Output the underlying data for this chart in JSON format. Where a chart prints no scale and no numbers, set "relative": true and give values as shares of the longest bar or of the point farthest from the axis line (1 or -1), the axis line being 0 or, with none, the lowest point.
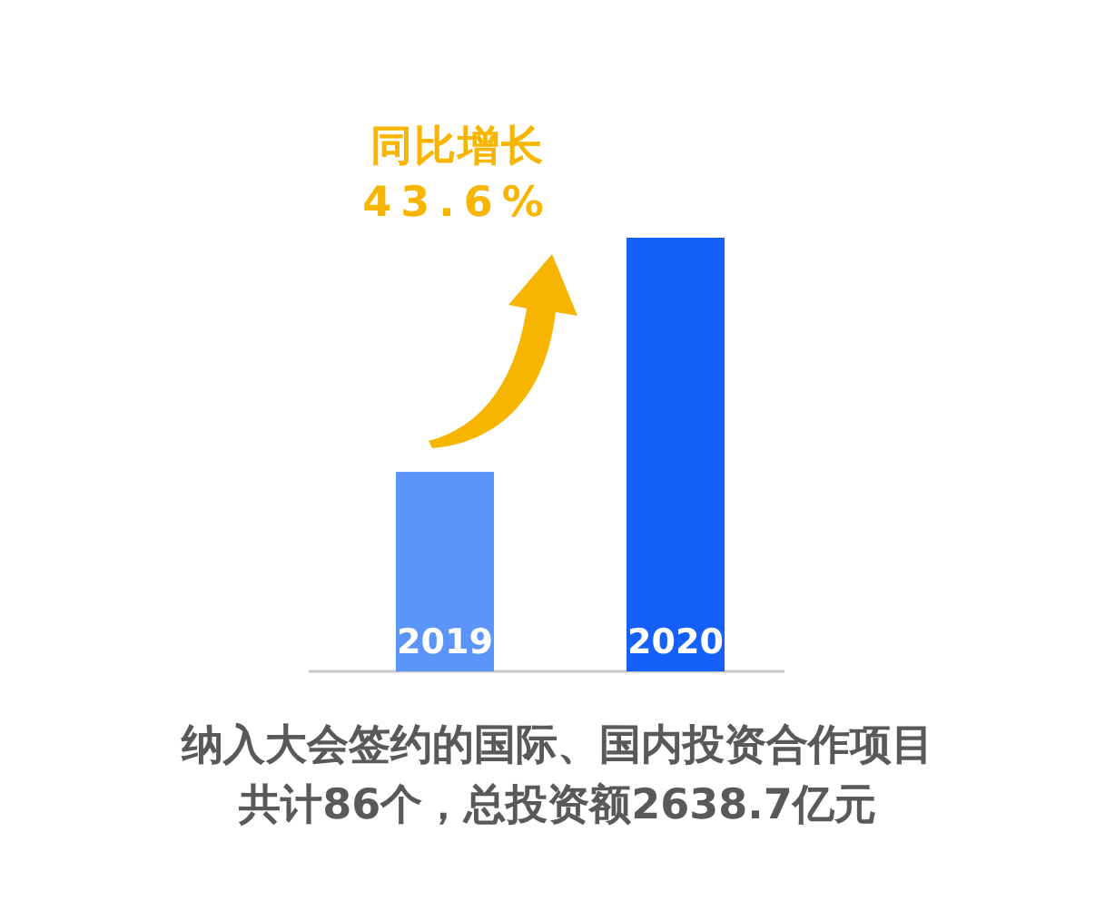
{
  "chart_data": {
    "type": "bar",
    "relative": true,
    "categories": [
      "2019",
      "2020"
    ],
    "values": [
      0.46,
      1
    ],
    "colors": [
      "#5b95f9",
      "#1560fb"
    ],
    "annotations": [
      "同比增长",
      "43.6%",
      "纳入大会签约的国际、国内投资合作项目",
      "共计86个，总投资额2638.7亿元"
    ]
  }
}
